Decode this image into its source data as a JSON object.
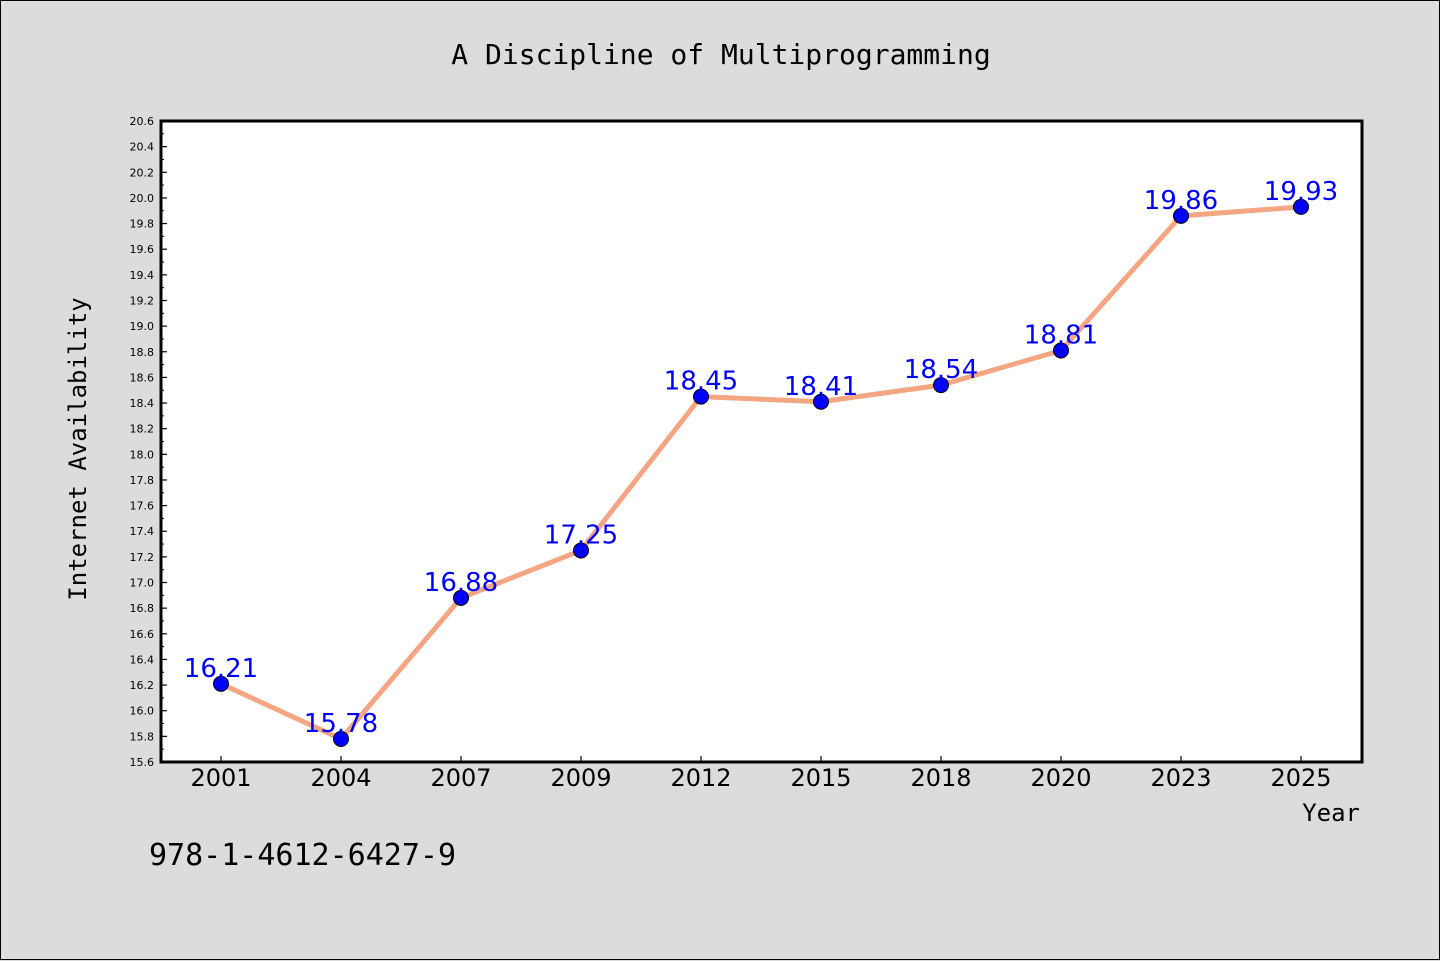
{
  "chart_data": {
    "type": "line",
    "title": "A Discipline of Multiprogramming",
    "xlabel": "Year",
    "ylabel": "Internet Availability",
    "categories": [
      "2001",
      "2004",
      "2007",
      "2009",
      "2012",
      "2015",
      "2018",
      "2020",
      "2023",
      "2025"
    ],
    "series": [
      {
        "values": [
          16.21,
          15.78,
          16.88,
          17.25,
          18.45,
          18.41,
          18.54,
          18.81,
          19.86,
          19.93
        ],
        "data_labels": [
          "16.21",
          "15.78",
          "16.88",
          "17.25",
          "18.45",
          "18.41",
          "18.54",
          "18.81",
          "19.86",
          "19.93"
        ]
      }
    ],
    "ylim": [
      15.6,
      20.6
    ],
    "yticks": [
      "15.6",
      "15.8",
      "16.0",
      "16.2",
      "16.4",
      "16.6",
      "16.8",
      "17.0",
      "17.2",
      "17.4",
      "17.6",
      "17.8",
      "18.0",
      "18.2",
      "18.4",
      "18.6",
      "18.8",
      "19.0",
      "19.2",
      "19.4",
      "19.6",
      "19.8",
      "20.0",
      "20.2",
      "20.4",
      "20.6"
    ],
    "grid": false,
    "legend": "none",
    "colors": {
      "line": "#f4a582",
      "marker": "#0000ff",
      "data_label": "#0000ff",
      "background": "#dcdcdc",
      "plot_background": "#ffffff"
    }
  },
  "footnote": "978-1-4612-6427-9"
}
